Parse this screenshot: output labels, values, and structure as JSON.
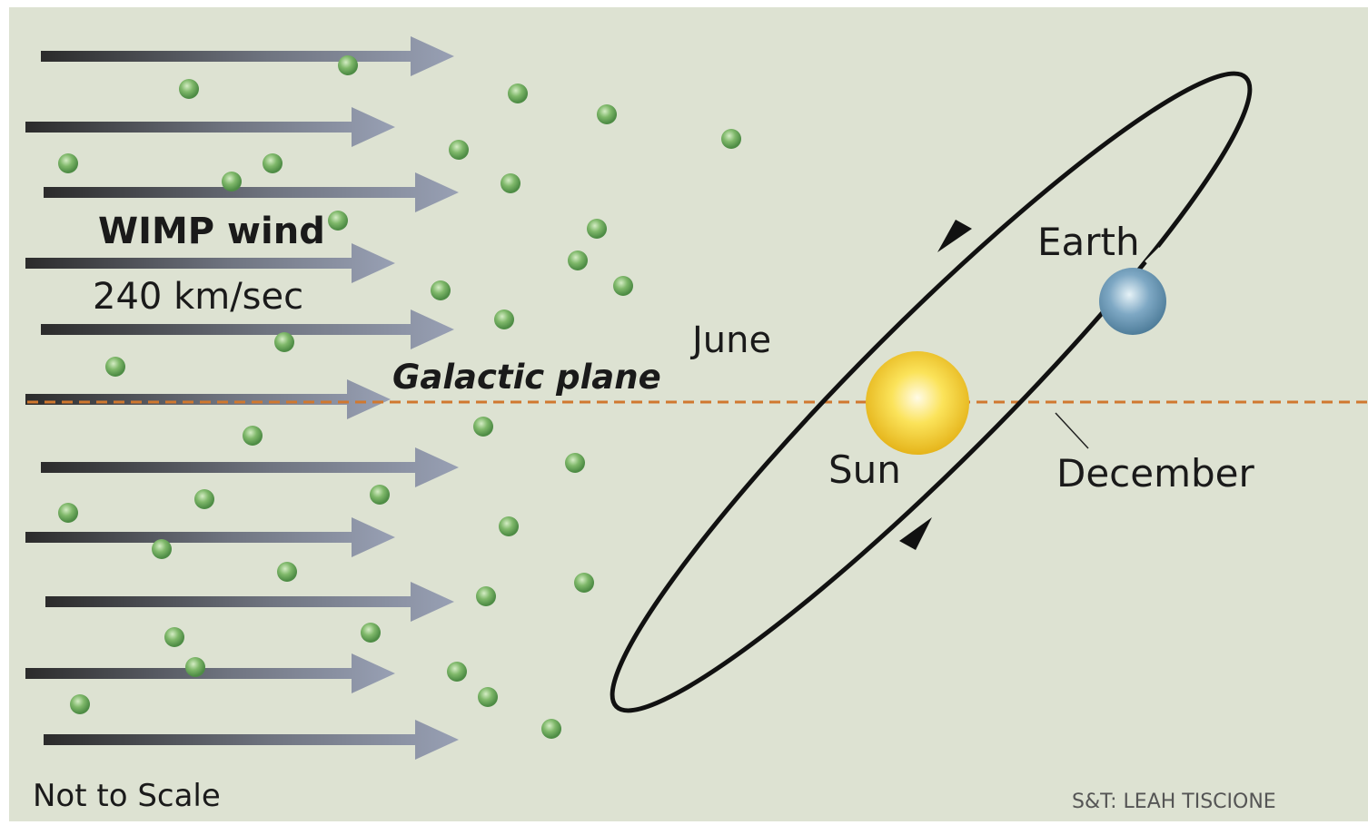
{
  "labels": {
    "wind": "WIMP wind",
    "speed": "240 km/sec",
    "plane": "Galactic plane",
    "june": "June",
    "earth": "Earth",
    "sun": "Sun",
    "december": "December",
    "scale": "Not to Scale",
    "credit": "S&T: LEAH TISCIONE"
  }
}
